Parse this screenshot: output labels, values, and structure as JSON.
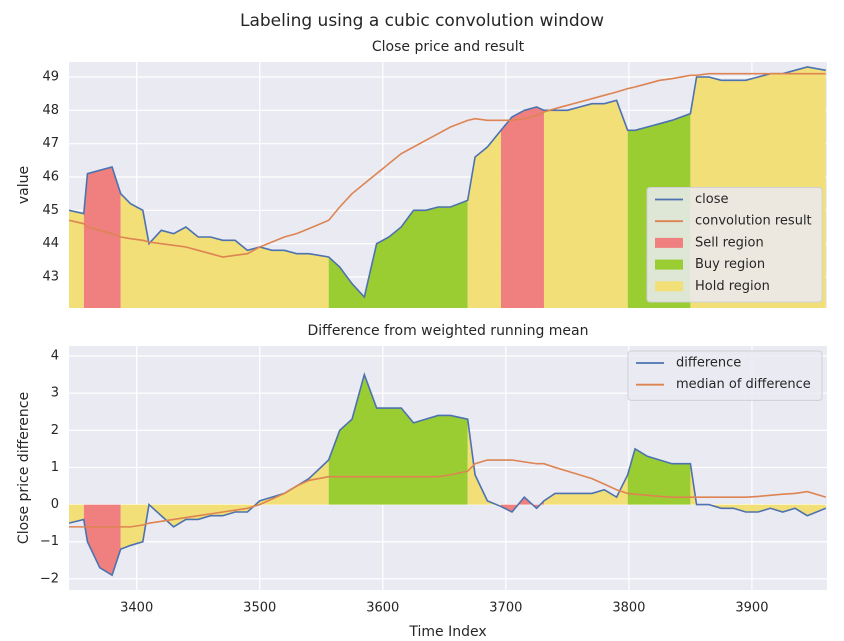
{
  "title": "Labeling using a cubic convolution window",
  "chart_data": [
    {
      "type": "line",
      "title": "Close price and result",
      "ylabel": "value",
      "x": [
        3345,
        3357,
        3360,
        3370,
        3380,
        3387,
        3395,
        3405,
        3410,
        3420,
        3430,
        3440,
        3450,
        3460,
        3470,
        3480,
        3490,
        3500,
        3510,
        3520,
        3530,
        3540,
        3556,
        3565,
        3575,
        3585,
        3595,
        3605,
        3615,
        3625,
        3635,
        3645,
        3655,
        3669,
        3675,
        3685,
        3696,
        3705,
        3715,
        3725,
        3731,
        3740,
        3750,
        3760,
        3770,
        3780,
        3790,
        3799,
        3805,
        3815,
        3825,
        3835,
        3850,
        3855,
        3865,
        3875,
        3885,
        3895,
        3905,
        3915,
        3925,
        3935,
        3945,
        3960
      ],
      "series": [
        {
          "name": "close",
          "color": "#4c72b0",
          "values": [
            45.0,
            44.9,
            46.1,
            46.2,
            46.3,
            45.5,
            45.2,
            45.0,
            44.0,
            44.4,
            44.3,
            44.5,
            44.2,
            44.2,
            44.1,
            44.1,
            43.8,
            43.9,
            43.8,
            43.8,
            43.7,
            43.7,
            43.6,
            43.3,
            42.8,
            42.4,
            44.0,
            44.2,
            44.5,
            45.0,
            45.0,
            45.1,
            45.1,
            45.3,
            46.6,
            46.9,
            47.4,
            47.8,
            48.0,
            48.1,
            48.0,
            48.0,
            48.0,
            48.1,
            48.2,
            48.2,
            48.3,
            47.4,
            47.4,
            47.5,
            47.6,
            47.7,
            47.9,
            49.0,
            49.0,
            48.9,
            48.9,
            48.9,
            49.0,
            49.1,
            49.1,
            49.2,
            49.3,
            49.2
          ]
        },
        {
          "name": "convolution result",
          "color": "#dd8452",
          "values": [
            44.7,
            44.6,
            44.5,
            44.4,
            44.3,
            44.2,
            44.15,
            44.1,
            44.05,
            44.0,
            43.95,
            43.9,
            43.8,
            43.7,
            43.6,
            43.65,
            43.7,
            43.9,
            44.05,
            44.2,
            44.3,
            44.45,
            44.7,
            45.1,
            45.5,
            45.8,
            46.1,
            46.4,
            46.7,
            46.9,
            47.1,
            47.3,
            47.5,
            47.7,
            47.75,
            47.7,
            47.7,
            47.7,
            47.75,
            47.85,
            47.95,
            48.05,
            48.15,
            48.25,
            48.35,
            48.45,
            48.55,
            48.65,
            48.7,
            48.8,
            48.9,
            48.95,
            49.05,
            49.05,
            49.1,
            49.1,
            49.1,
            49.1,
            49.1,
            49.1,
            49.1,
            49.1,
            49.1,
            49.1
          ]
        }
      ],
      "regions": [
        {
          "name": "Sell region",
          "color": "#f08080",
          "spans": [
            [
              3357,
              3387
            ],
            [
              3696,
              3731
            ]
          ]
        },
        {
          "name": "Buy region",
          "color": "#9acd32",
          "spans": [
            [
              3556,
              3669
            ],
            [
              3799,
              3850
            ]
          ]
        },
        {
          "name": "Hold region",
          "color": "#f3df78",
          "spans": [
            [
              3345,
              3357
            ],
            [
              3387,
              3556
            ],
            [
              3669,
              3696
            ],
            [
              3731,
              3799
            ],
            [
              3850,
              3960
            ]
          ]
        }
      ],
      "xlim": [
        3345,
        3961
      ],
      "ylim": [
        42.07,
        49.45
      ],
      "xticks": [
        3400,
        3500,
        3600,
        3700,
        3800,
        3900
      ],
      "yticks": [
        43,
        44,
        45,
        46,
        47,
        48,
        49
      ],
      "grid": true,
      "legend": "lower right"
    },
    {
      "type": "line",
      "title": "Difference from weighted running mean",
      "ylabel": "Close price difference",
      "xlabel": "Time Index",
      "x": [
        3345,
        3357,
        3360,
        3370,
        3380,
        3387,
        3395,
        3405,
        3410,
        3420,
        3430,
        3440,
        3450,
        3460,
        3470,
        3480,
        3490,
        3500,
        3510,
        3520,
        3530,
        3540,
        3556,
        3565,
        3575,
        3585,
        3595,
        3605,
        3615,
        3625,
        3635,
        3645,
        3655,
        3669,
        3675,
        3685,
        3696,
        3705,
        3715,
        3725,
        3731,
        3740,
        3750,
        3760,
        3770,
        3780,
        3790,
        3799,
        3805,
        3815,
        3825,
        3835,
        3850,
        3855,
        3865,
        3875,
        3885,
        3895,
        3905,
        3915,
        3925,
        3935,
        3945,
        3960
      ],
      "series": [
        {
          "name": "difference",
          "color": "#4c72b0",
          "values": [
            -0.5,
            -0.4,
            -1.0,
            -1.7,
            -1.9,
            -1.2,
            -1.1,
            -1.0,
            0.0,
            -0.3,
            -0.6,
            -0.4,
            -0.4,
            -0.3,
            -0.3,
            -0.2,
            -0.2,
            0.1,
            0.2,
            0.3,
            0.5,
            0.7,
            1.2,
            2.0,
            2.3,
            3.5,
            2.6,
            2.6,
            2.6,
            2.2,
            2.3,
            2.4,
            2.4,
            2.3,
            0.8,
            0.1,
            -0.05,
            -0.2,
            0.2,
            -0.1,
            0.1,
            0.3,
            0.3,
            0.3,
            0.3,
            0.4,
            0.2,
            0.8,
            1.5,
            1.3,
            1.2,
            1.1,
            1.1,
            0.0,
            0.0,
            -0.1,
            -0.1,
            -0.2,
            -0.2,
            -0.1,
            -0.2,
            -0.1,
            -0.3,
            -0.1
          ]
        },
        {
          "name": "median of difference",
          "color": "#dd8452",
          "values": [
            -0.6,
            -0.6,
            -0.6,
            -0.6,
            -0.6,
            -0.6,
            -0.6,
            -0.55,
            -0.5,
            -0.45,
            -0.4,
            -0.35,
            -0.3,
            -0.25,
            -0.2,
            -0.15,
            -0.1,
            0.0,
            0.15,
            0.3,
            0.5,
            0.65,
            0.75,
            0.75,
            0.75,
            0.75,
            0.75,
            0.75,
            0.75,
            0.75,
            0.75,
            0.75,
            0.8,
            0.9,
            1.1,
            1.2,
            1.2,
            1.2,
            1.15,
            1.1,
            1.1,
            1.0,
            0.9,
            0.8,
            0.7,
            0.55,
            0.4,
            0.3,
            0.28,
            0.25,
            0.22,
            0.2,
            0.2,
            0.2,
            0.2,
            0.2,
            0.2,
            0.2,
            0.22,
            0.25,
            0.28,
            0.3,
            0.35,
            0.2
          ]
        }
      ],
      "shade_regions": true,
      "xlim": [
        3345,
        3961
      ],
      "ylim": [
        -2.3,
        4.27
      ],
      "xticks": [
        3400,
        3500,
        3600,
        3700,
        3800,
        3900
      ],
      "yticks": [
        {
          "value": -2,
          "label": "−2"
        },
        {
          "value": -1,
          "label": "−1"
        },
        0,
        1,
        2,
        3,
        4
      ],
      "grid": true,
      "legend": "upper right"
    }
  ]
}
